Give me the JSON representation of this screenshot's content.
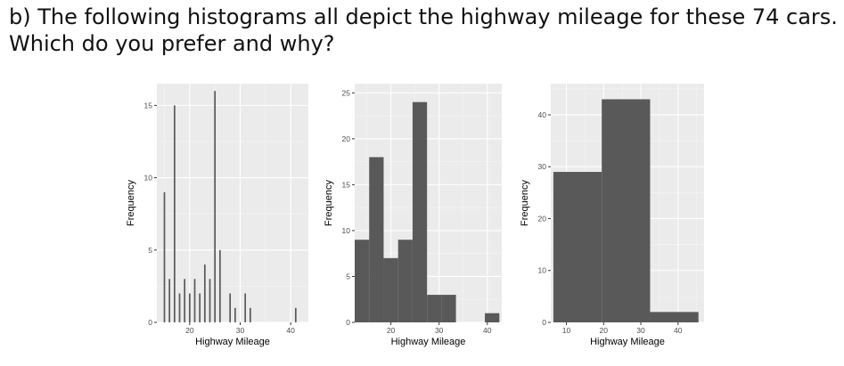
{
  "question": {
    "line1": "b) The following histograms all depict the highway mileage for these 74 cars.",
    "line2": "Which do you prefer and why?"
  },
  "colors": {
    "panel": "#ebebeb",
    "grid_major": "#ffffff",
    "bar": "#595959",
    "axis_text": "#4d4d4d",
    "axis_title": "#000000"
  },
  "chart_data": [
    {
      "type": "bar",
      "xlabel": "Highway Mileage",
      "ylabel": "Frequency",
      "xlim": [
        13.5,
        43.5
      ],
      "ylim": [
        0,
        16.5
      ],
      "xticks": [
        20,
        30,
        40
      ],
      "yticks": [
        0,
        5,
        10,
        15
      ],
      "bin_width": 0.3,
      "bars": [
        {
          "x": 15,
          "count": 9
        },
        {
          "x": 16,
          "count": 3
        },
        {
          "x": 17,
          "count": 15
        },
        {
          "x": 18,
          "count": 2
        },
        {
          "x": 19,
          "count": 3
        },
        {
          "x": 20,
          "count": 2
        },
        {
          "x": 21,
          "count": 3
        },
        {
          "x": 22,
          "count": 2
        },
        {
          "x": 23,
          "count": 4
        },
        {
          "x": 24,
          "count": 3
        },
        {
          "x": 25,
          "count": 16
        },
        {
          "x": 26,
          "count": 5
        },
        {
          "x": 28,
          "count": 2
        },
        {
          "x": 29,
          "count": 1
        },
        {
          "x": 31,
          "count": 2
        },
        {
          "x": 32,
          "count": 1
        },
        {
          "x": 41,
          "count": 1
        }
      ]
    },
    {
      "type": "bar",
      "xlabel": "Highway Mileage",
      "ylabel": "Frequency",
      "xlim": [
        12.5,
        43
      ],
      "ylim": [
        0,
        26
      ],
      "xticks": [
        20,
        30,
        40
      ],
      "yticks": [
        0,
        5,
        10,
        15,
        20,
        25
      ],
      "bin_width": 3,
      "bars": [
        {
          "x": 14,
          "count": 9
        },
        {
          "x": 17,
          "count": 18
        },
        {
          "x": 20,
          "count": 7
        },
        {
          "x": 23,
          "count": 9
        },
        {
          "x": 26,
          "count": 24
        },
        {
          "x": 29,
          "count": 3
        },
        {
          "x": 32,
          "count": 3
        },
        {
          "x": 35,
          "count": 0
        },
        {
          "x": 38,
          "count": 0
        },
        {
          "x": 41,
          "count": 1
        }
      ]
    },
    {
      "type": "bar",
      "xlabel": "Highway Mileage",
      "ylabel": "Frequency",
      "xlim": [
        5.8,
        47
      ],
      "ylim": [
        0,
        46
      ],
      "xticks": [
        10,
        20,
        30,
        40
      ],
      "yticks": [
        0,
        10,
        20,
        30,
        40
      ],
      "bin_width": 13,
      "bars": [
        {
          "x": 13,
          "count": 29
        },
        {
          "x": 26,
          "count": 43
        },
        {
          "x": 39,
          "count": 2
        }
      ]
    }
  ]
}
